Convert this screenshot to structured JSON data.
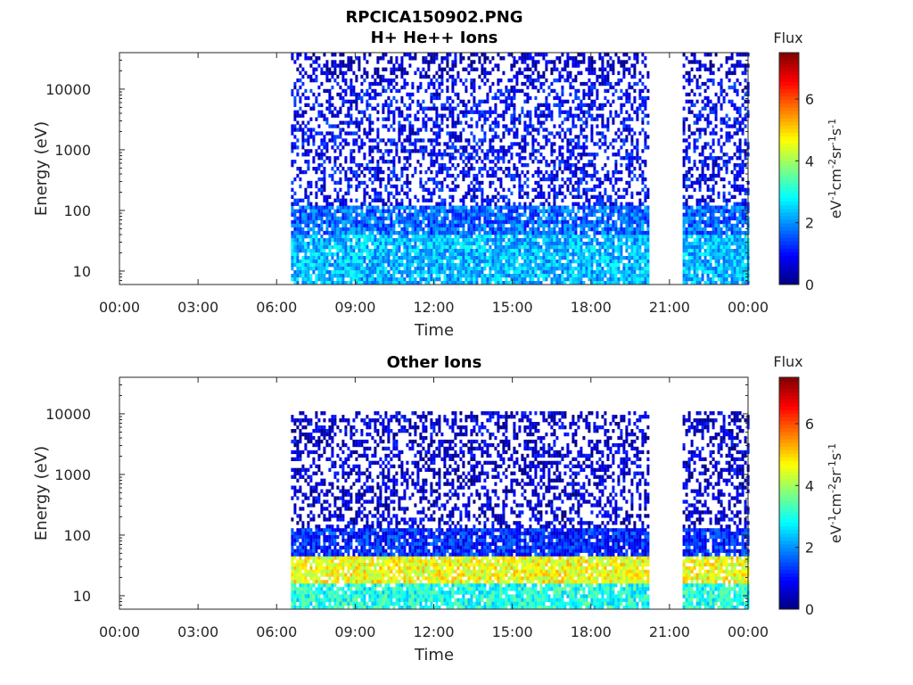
{
  "figure": {
    "title": "RPCICA150902.PNG"
  },
  "chart_data": [
    {
      "type": "heatmap",
      "title": "H+ He++ Ions",
      "xlabel": "Time",
      "ylabel": "Energy (eV)",
      "y_scale": "log",
      "ylim": [
        6,
        40000
      ],
      "x_ticks": [
        "00:00",
        "03:00",
        "06:00",
        "09:00",
        "12:00",
        "15:00",
        "18:00",
        "21:00",
        "00:00"
      ],
      "x_range_hours": [
        0,
        24
      ],
      "y_ticks": [
        "10",
        "100",
        "1000",
        "10000"
      ],
      "y_tick_values": [
        10,
        100,
        1000,
        10000
      ],
      "colorbar": {
        "title": "Flux",
        "label": "eV-1cm-2sr-1s-1",
        "ticks": [
          "0",
          "2",
          "4",
          "6"
        ],
        "range": [
          0,
          7.5
        ],
        "colormap": "jet"
      },
      "data_intervals_hours": [
        [
          6.55,
          20.15
        ],
        [
          21.5,
          24.0
        ]
      ],
      "bands": [
        {
          "emin": 6,
          "emax": 40,
          "flux": 2.3
        },
        {
          "emin": 40,
          "emax": 120,
          "flux": 1.7
        },
        {
          "emin": 120,
          "emax": 15000,
          "flux": 0.9
        },
        {
          "emin": 15000,
          "emax": 40000,
          "flux": 0.5
        }
      ],
      "grid": false
    },
    {
      "type": "heatmap",
      "title": "Other Ions",
      "xlabel": "Time",
      "ylabel": "Energy (eV)",
      "y_scale": "log",
      "ylim": [
        6,
        40000
      ],
      "x_ticks": [
        "00:00",
        "03:00",
        "06:00",
        "09:00",
        "12:00",
        "15:00",
        "18:00",
        "21:00",
        "00:00"
      ],
      "x_range_hours": [
        0,
        24
      ],
      "y_ticks": [
        "10",
        "100",
        "1000",
        "10000"
      ],
      "y_tick_values": [
        10,
        100,
        1000,
        10000
      ],
      "colorbar": {
        "title": "Flux",
        "label": "eV-1cm-2sr-1s-1",
        "ticks": [
          "0",
          "2",
          "4",
          "6"
        ],
        "range": [
          0,
          7.5
        ],
        "colormap": "jet"
      },
      "data_intervals_hours": [
        [
          6.55,
          20.15
        ],
        [
          21.5,
          24.0
        ]
      ],
      "bands": [
        {
          "emin": 6,
          "emax": 16,
          "flux": 3.0
        },
        {
          "emin": 16,
          "emax": 45,
          "flux": 4.6
        },
        {
          "emin": 45,
          "emax": 130,
          "flux": 1.2
        },
        {
          "emin": 130,
          "emax": 11000,
          "flux": 0.6
        }
      ],
      "grid": false
    }
  ]
}
